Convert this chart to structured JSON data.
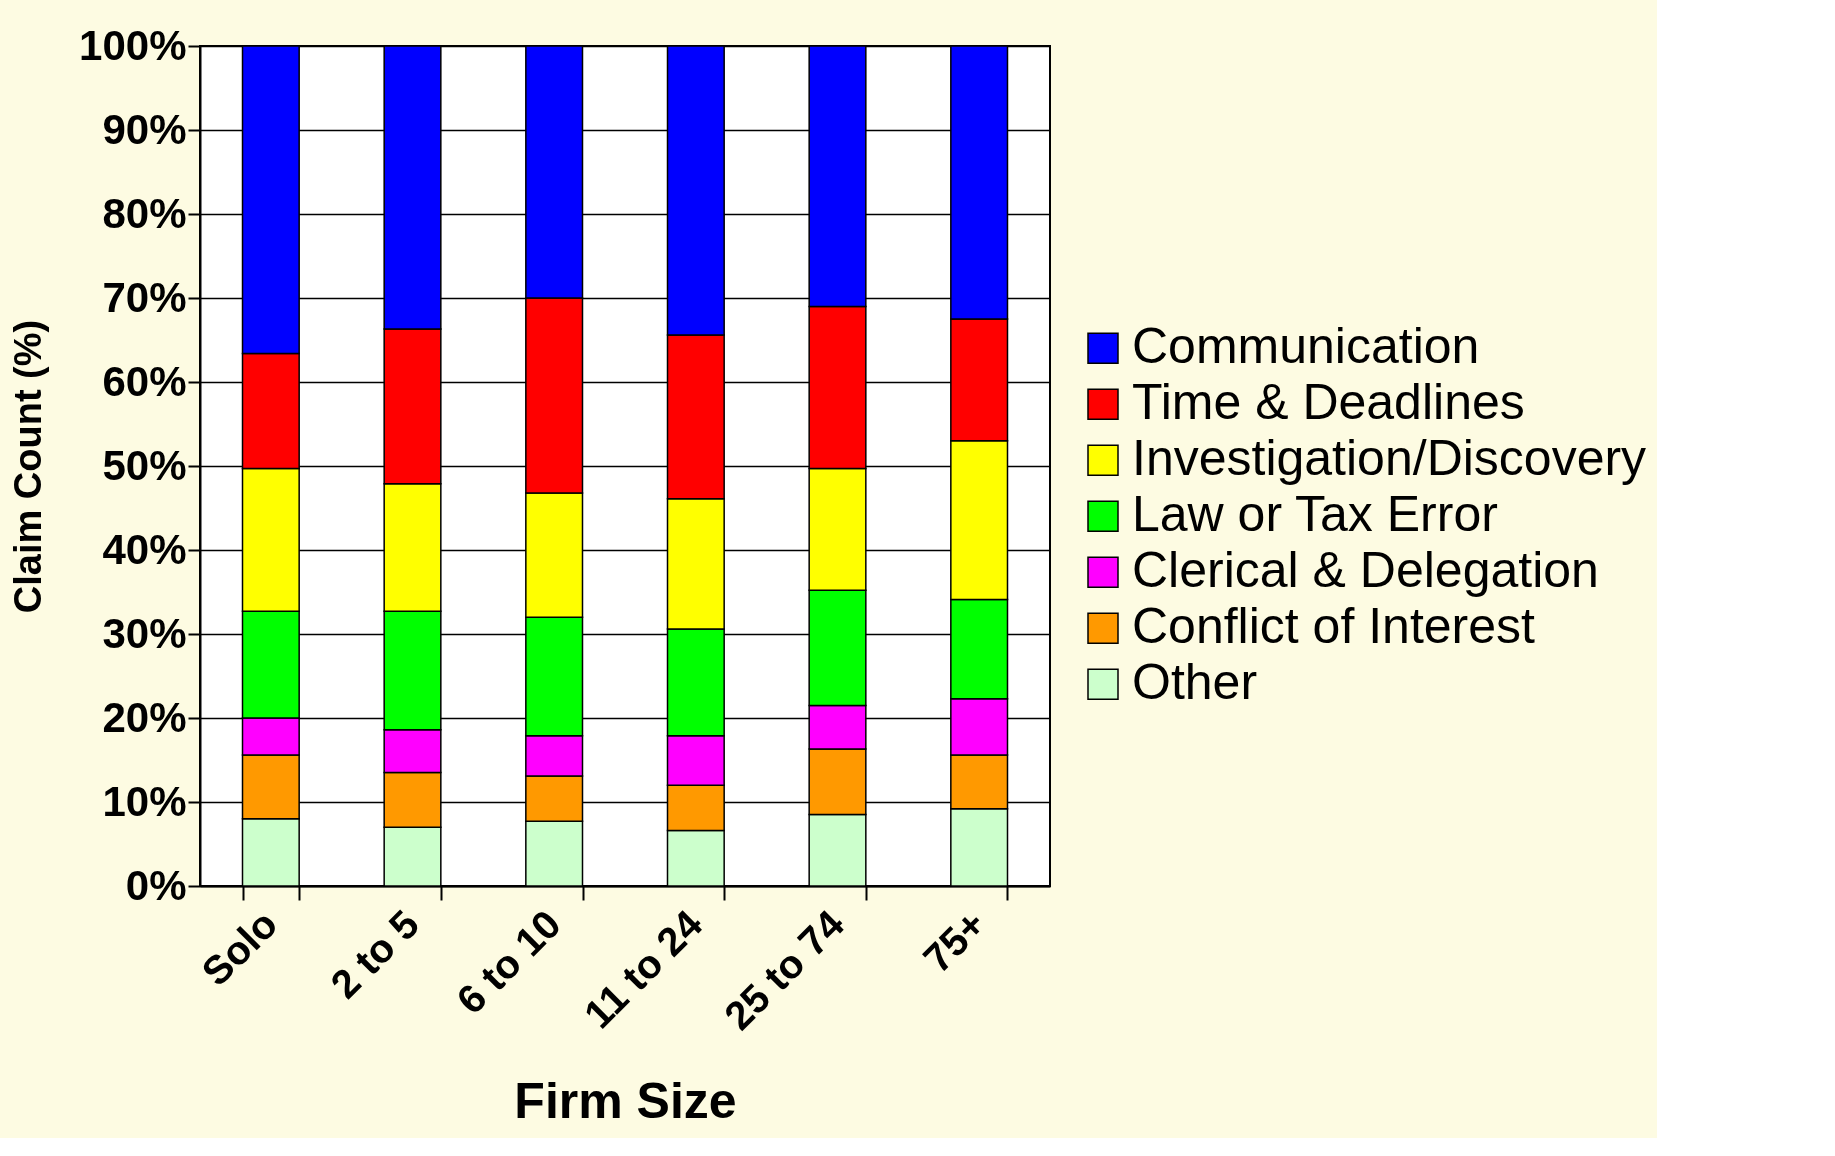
{
  "chart_data": {
    "type": "bar",
    "stacked": true,
    "xlabel": "Firm Size",
    "ylabel": "Claim Count (%)",
    "categories": [
      "Solo",
      "2 to 5",
      "6 to 10",
      "11 to 24",
      "25 to 74",
      "75+"
    ],
    "series": [
      {
        "name": "Other",
        "color": "#ccffcc",
        "values": [
          8.0,
          7.0,
          7.7,
          6.6,
          8.5,
          9.2
        ]
      },
      {
        "name": "Conflict of Interest",
        "color": "#ff9900",
        "values": [
          7.6,
          6.5,
          5.4,
          5.4,
          7.8,
          6.4
        ]
      },
      {
        "name": "Clerical & Delegation",
        "color": "#ff00ff",
        "values": [
          4.4,
          5.1,
          4.8,
          5.9,
          5.2,
          6.7
        ]
      },
      {
        "name": "Law or Tax Error",
        "color": "#00ff00",
        "values": [
          12.7,
          14.1,
          14.1,
          12.7,
          13.7,
          11.8
        ]
      },
      {
        "name": "Investigation/Discovery",
        "color": "#ffff00",
        "values": [
          17.0,
          15.2,
          14.8,
          15.5,
          14.5,
          18.9
        ]
      },
      {
        "name": "Time & Deadlines",
        "color": "#ff0000",
        "values": [
          13.7,
          18.4,
          23.2,
          19.5,
          19.3,
          14.5
        ]
      },
      {
        "name": "Communication",
        "color": "#0000ff",
        "values": [
          36.6,
          33.7,
          30.0,
          34.4,
          31.0,
          32.5
        ]
      }
    ],
    "ylim": [
      0,
      100
    ],
    "yticks": [
      {
        "value": 0,
        "label": "0%"
      },
      {
        "value": 10,
        "label": "10%"
      },
      {
        "value": 20,
        "label": "20%"
      },
      {
        "value": 30,
        "label": "30%"
      },
      {
        "value": 40,
        "label": "40%"
      },
      {
        "value": 50,
        "label": "50%"
      },
      {
        "value": 60,
        "label": "60%"
      },
      {
        "value": 70,
        "label": "70%"
      },
      {
        "value": 80,
        "label": "80%"
      },
      {
        "value": 90,
        "label": "90%"
      },
      {
        "value": 100,
        "label": "100%"
      }
    ],
    "grid": "y",
    "legend": "right"
  }
}
